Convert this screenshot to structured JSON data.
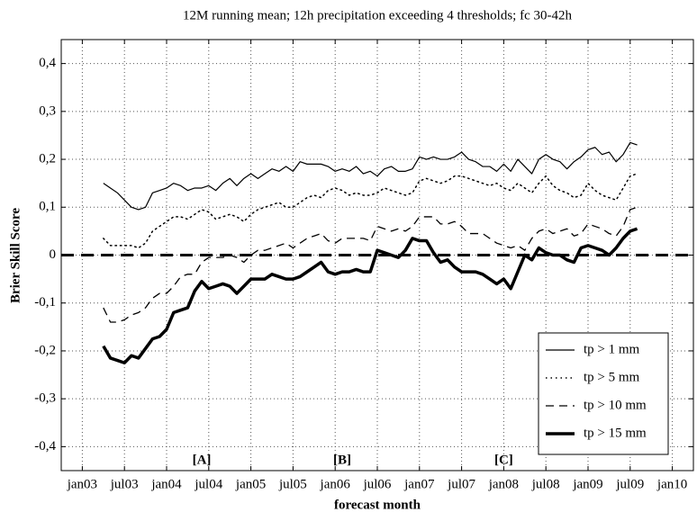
{
  "chart_data": {
    "type": "line",
    "title": "12M running mean; 12h precipitation exceeding 4 thresholds; fc 30-42h",
    "x_label": "forecast month",
    "y_label": "Brier Skill Score",
    "x": [
      "2003-04",
      "2003-05",
      "2003-06",
      "2003-07",
      "2003-08",
      "2003-09",
      "2003-10",
      "2003-11",
      "2003-12",
      "2004-01",
      "2004-02",
      "2004-03",
      "2004-04",
      "2004-05",
      "2004-06",
      "2004-07",
      "2004-08",
      "2004-09",
      "2004-10",
      "2004-11",
      "2004-12",
      "2005-01",
      "2005-02",
      "2005-03",
      "2005-04",
      "2005-05",
      "2005-06",
      "2005-07",
      "2005-08",
      "2005-09",
      "2005-10",
      "2005-11",
      "2005-12",
      "2006-01",
      "2006-02",
      "2006-03",
      "2006-04",
      "2006-05",
      "2006-06",
      "2006-07",
      "2006-08",
      "2006-09",
      "2006-10",
      "2006-11",
      "2006-12",
      "2007-01",
      "2007-02",
      "2007-03",
      "2007-04",
      "2007-05",
      "2007-06",
      "2007-07",
      "2007-08",
      "2007-09",
      "2007-10",
      "2007-11",
      "2007-12",
      "2008-01",
      "2008-02",
      "2008-03",
      "2008-04",
      "2008-05",
      "2008-06",
      "2008-07",
      "2008-08",
      "2008-09",
      "2008-10",
      "2008-11",
      "2008-12",
      "2009-01",
      "2009-02",
      "2009-03",
      "2009-04",
      "2009-05",
      "2009-06",
      "2009-07",
      "2009-08"
    ],
    "series": [
      {
        "name": "tp > 1 mm",
        "color": "#000000",
        "style": "solid",
        "linewidth": 1.2,
        "values": [
          0.15,
          0.14,
          0.13,
          0.115,
          0.1,
          0.095,
          0.1,
          0.13,
          0.135,
          0.14,
          0.15,
          0.145,
          0.135,
          0.14,
          0.14,
          0.145,
          0.135,
          0.15,
          0.16,
          0.145,
          0.16,
          0.17,
          0.16,
          0.17,
          0.18,
          0.175,
          0.185,
          0.175,
          0.195,
          0.19,
          0.19,
          0.19,
          0.185,
          0.175,
          0.18,
          0.175,
          0.185,
          0.17,
          0.175,
          0.165,
          0.18,
          0.185,
          0.175,
          0.175,
          0.18,
          0.205,
          0.2,
          0.205,
          0.2,
          0.2,
          0.205,
          0.215,
          0.2,
          0.195,
          0.185,
          0.185,
          0.175,
          0.19,
          0.175,
          0.2,
          0.185,
          0.17,
          0.2,
          0.21,
          0.2,
          0.195,
          0.18,
          0.195,
          0.205,
          0.22,
          0.225,
          0.21,
          0.215,
          0.195,
          0.21,
          0.235,
          0.23
        ]
      },
      {
        "name": "tp > 5 mm",
        "color": "#000000",
        "style": "dotted",
        "linewidth": 1.5,
        "values": [
          0.035,
          0.02,
          0.02,
          0.02,
          0.02,
          0.015,
          0.025,
          0.05,
          0.06,
          0.07,
          0.08,
          0.08,
          0.075,
          0.085,
          0.095,
          0.09,
          0.075,
          0.08,
          0.085,
          0.08,
          0.07,
          0.085,
          0.095,
          0.1,
          0.105,
          0.11,
          0.1,
          0.1,
          0.11,
          0.12,
          0.125,
          0.12,
          0.135,
          0.14,
          0.135,
          0.125,
          0.13,
          0.125,
          0.125,
          0.13,
          0.14,
          0.135,
          0.13,
          0.125,
          0.13,
          0.155,
          0.16,
          0.155,
          0.15,
          0.155,
          0.165,
          0.165,
          0.16,
          0.155,
          0.15,
          0.145,
          0.15,
          0.14,
          0.135,
          0.15,
          0.14,
          0.13,
          0.15,
          0.165,
          0.145,
          0.135,
          0.13,
          0.12,
          0.125,
          0.15,
          0.135,
          0.125,
          0.12,
          0.115,
          0.14,
          0.165,
          0.17
        ]
      },
      {
        "name": "tp > 10 mm",
        "color": "#000000",
        "style": "dashed",
        "linewidth": 1.3,
        "values": [
          -0.11,
          -0.14,
          -0.14,
          -0.135,
          -0.125,
          -0.12,
          -0.11,
          -0.09,
          -0.08,
          -0.08,
          -0.065,
          -0.045,
          -0.04,
          -0.04,
          -0.015,
          -0.005,
          -0.005,
          -0.005,
          0,
          -0.005,
          -0.015,
          0,
          0.01,
          0.01,
          0.015,
          0.02,
          0.025,
          0.015,
          0.025,
          0.035,
          0.04,
          0.045,
          0.03,
          0.025,
          0.035,
          0.035,
          0.035,
          0.035,
          0.03,
          0.06,
          0.055,
          0.05,
          0.055,
          0.05,
          0.06,
          0.08,
          0.08,
          0.08,
          0.065,
          0.065,
          0.07,
          0.06,
          0.045,
          0.045,
          0.045,
          0.035,
          0.025,
          0.02,
          0.015,
          0.02,
          0.01,
          0.035,
          0.05,
          0.055,
          0.045,
          0.05,
          0.055,
          0.04,
          0.045,
          0.065,
          0.06,
          0.055,
          0.045,
          0.04,
          0.06,
          0.095,
          0.1
        ]
      },
      {
        "name": "tp > 15 mm",
        "color": "#000000",
        "style": "solid",
        "linewidth": 3.5,
        "values": [
          -0.19,
          -0.215,
          -0.22,
          -0.225,
          -0.21,
          -0.215,
          -0.195,
          -0.175,
          -0.17,
          -0.155,
          -0.12,
          -0.115,
          -0.11,
          -0.075,
          -0.055,
          -0.07,
          -0.065,
          -0.06,
          -0.065,
          -0.08,
          -0.065,
          -0.05,
          -0.05,
          -0.05,
          -0.04,
          -0.045,
          -0.05,
          -0.05,
          -0.045,
          -0.035,
          -0.025,
          -0.015,
          -0.035,
          -0.04,
          -0.035,
          -0.035,
          -0.03,
          -0.035,
          -0.035,
          0.01,
          0.005,
          0,
          -0.005,
          0.01,
          0.035,
          0.03,
          0.03,
          0.005,
          -0.015,
          -0.01,
          -0.025,
          -0.035,
          -0.035,
          -0.035,
          -0.04,
          -0.05,
          -0.06,
          -0.05,
          -0.07,
          -0.035,
          0,
          -0.01,
          0.015,
          0.005,
          0,
          0,
          -0.01,
          -0.015,
          0.015,
          0.02,
          0.015,
          0.01,
          0,
          0.015,
          0.035,
          0.05,
          0.055
        ]
      }
    ],
    "xlim": [
      "2002-10",
      "2010-04"
    ],
    "xticks": [
      {
        "value": "2003-01",
        "label": "jan03"
      },
      {
        "value": "2003-07",
        "label": "jul03"
      },
      {
        "value": "2004-01",
        "label": "jan04"
      },
      {
        "value": "2004-07",
        "label": "jul04"
      },
      {
        "value": "2005-01",
        "label": "jan05"
      },
      {
        "value": "2005-07",
        "label": "jul05"
      },
      {
        "value": "2006-01",
        "label": "jan06"
      },
      {
        "value": "2006-07",
        "label": "jul06"
      },
      {
        "value": "2007-01",
        "label": "jan07"
      },
      {
        "value": "2007-07",
        "label": "jul07"
      },
      {
        "value": "2008-01",
        "label": "jan08"
      },
      {
        "value": "2008-07",
        "label": "jul08"
      },
      {
        "value": "2009-01",
        "label": "jan09"
      },
      {
        "value": "2009-07",
        "label": "jul09"
      },
      {
        "value": "2010-01",
        "label": "jan10"
      }
    ],
    "ylim": [
      -0.45,
      0.45
    ],
    "yticks": [
      {
        "value": -0.4,
        "label": "-0,4"
      },
      {
        "value": -0.3,
        "label": "-0,3"
      },
      {
        "value": -0.2,
        "label": "-0,2"
      },
      {
        "value": -0.1,
        "label": "-0,1"
      },
      0,
      {
        "value": 0.1,
        "label": "0,1"
      },
      {
        "value": 0.2,
        "label": "0,2"
      },
      {
        "value": 0.3,
        "label": "0,3"
      },
      {
        "value": 0.4,
        "label": "0,4"
      }
    ],
    "grid": true,
    "reference_line": 0,
    "legend": "lower right",
    "annotations": [
      {
        "text": "[A]",
        "x": "2004-06"
      },
      {
        "text": "[B]",
        "x": "2006-02"
      },
      {
        "text": "[C]",
        "x": "2008-01"
      }
    ]
  }
}
